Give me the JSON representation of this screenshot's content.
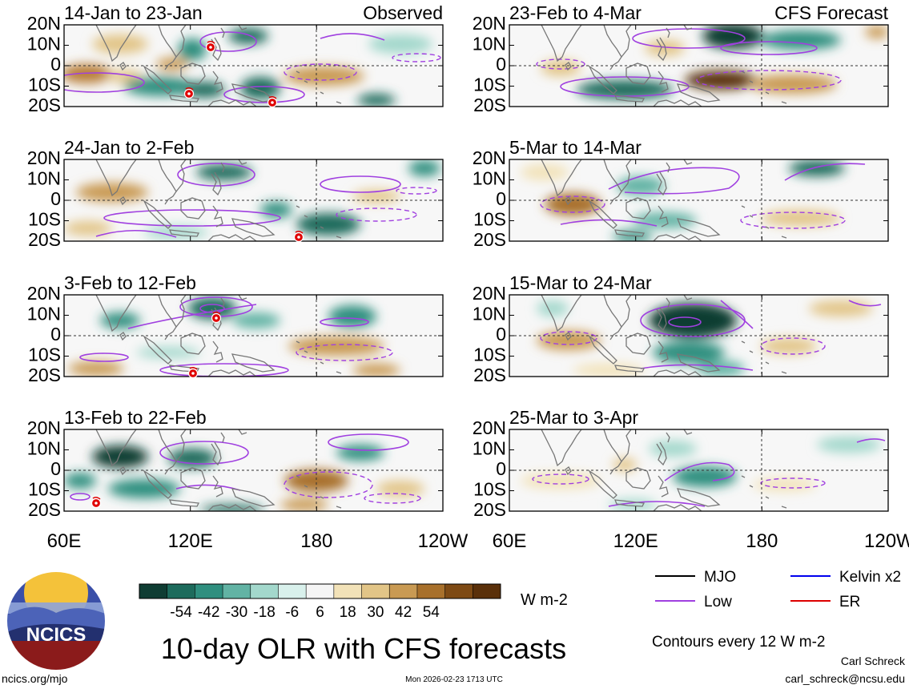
{
  "observed_label": "Observed",
  "forecast_label": "CFS Forecast",
  "panels": [
    {
      "id": "obs1",
      "title": "14-Jan to 23-Jan",
      "kind": "observed"
    },
    {
      "id": "obs2",
      "title": "24-Jan to 2-Feb",
      "kind": "observed"
    },
    {
      "id": "obs3",
      "title": "3-Feb to 12-Feb",
      "kind": "observed"
    },
    {
      "id": "obs4",
      "title": "13-Feb to 22-Feb",
      "kind": "observed"
    },
    {
      "id": "fc1",
      "title": "23-Feb to 4-Mar",
      "kind": "forecast"
    },
    {
      "id": "fc2",
      "title": "5-Mar to 14-Mar",
      "kind": "forecast"
    },
    {
      "id": "fc3",
      "title": "15-Mar to 24-Mar",
      "kind": "forecast"
    },
    {
      "id": "fc4",
      "title": "25-Mar to 3-Apr",
      "kind": "forecast"
    }
  ],
  "lat_ticks": [
    "20N",
    "10N",
    "0",
    "10S",
    "20S"
  ],
  "lon_ticks_left": [
    "60E",
    "120E",
    "180",
    "120W"
  ],
  "lon_ticks_right": [
    "60E",
    "120E",
    "180",
    "120W"
  ],
  "colorbar": {
    "ticks": [
      "-54",
      "-42",
      "-30",
      "-18",
      "-6",
      "6",
      "18",
      "30",
      "42",
      "54"
    ],
    "units": "W m-2",
    "colors": [
      "#0f3d33",
      "#1d6b5c",
      "#2f8f7f",
      "#62b3a4",
      "#a3d8cc",
      "#d9f1ec",
      "#f5f5f5",
      "#f2e2b8",
      "#e2c587",
      "#c99a53",
      "#a8702b",
      "#7e4a14",
      "#5a300a"
    ]
  },
  "legend": [
    {
      "label": "MJO",
      "color": "#000000"
    },
    {
      "label": "Kelvin x2",
      "color": "#0000ee"
    },
    {
      "label": "Low",
      "color": "#a040e0"
    },
    {
      "label": "ER",
      "color": "#dd0000"
    }
  ],
  "contour_note": "Contours every 12 W m-2",
  "main_title": "10-day OLR with CFS forecasts",
  "logo_text": "NCICS",
  "footer": {
    "url": "ncics.org/mjo",
    "timestamp": "Mon 2026-02-23 1713 UTC",
    "author": "Carl Schreck",
    "email": "carl_schreck@ncsu.edu"
  },
  "storm_markers": [
    {
      "panel": "obs1",
      "symbol": "tropical-storm"
    },
    {
      "panel": "obs1",
      "symbol": "tropical-storm"
    },
    {
      "panel": "obs1",
      "symbol": "tropical-storm"
    },
    {
      "panel": "obs2",
      "symbol": "tropical-storm"
    },
    {
      "panel": "obs3",
      "symbol": "tropical-storm"
    },
    {
      "panel": "obs3",
      "symbol": "tropical-storm"
    },
    {
      "panel": "obs4",
      "symbol": "tropical-storm"
    }
  ]
}
